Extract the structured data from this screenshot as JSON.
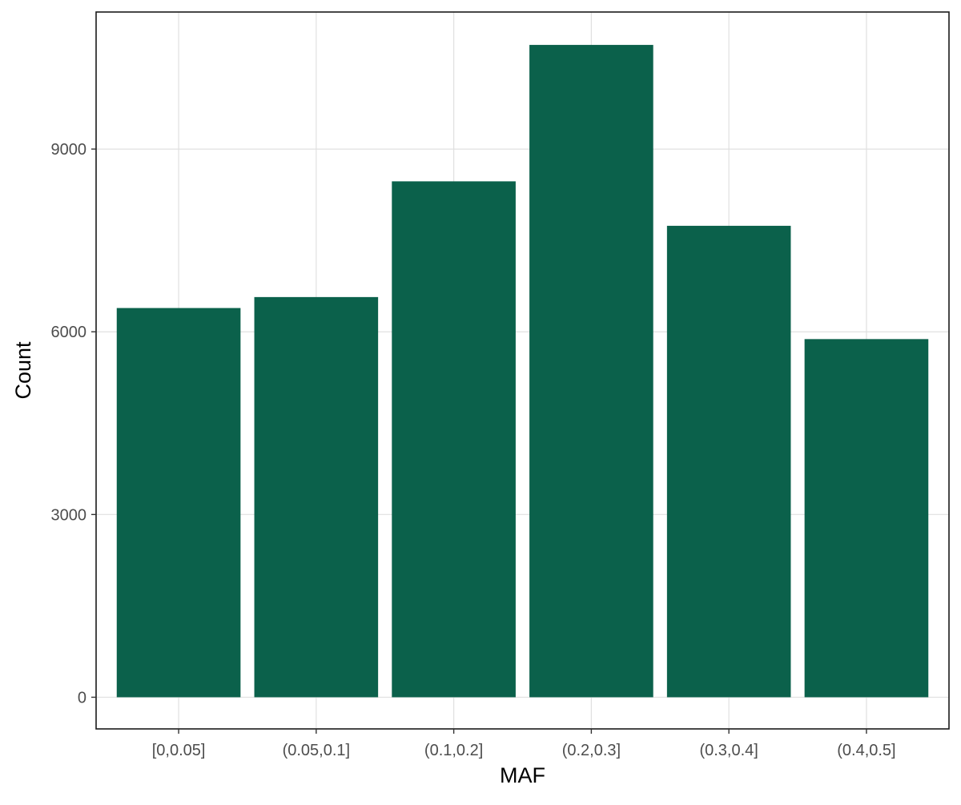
{
  "chart_data": {
    "type": "bar",
    "title": "",
    "xlabel": "MAF",
    "ylabel": "Count",
    "categories": [
      "[0,0.05]",
      "(0.05,0.1]",
      "(0.1,0.2]",
      "(0.2,0.3]",
      "(0.3,0.4]",
      "(0.4,0.5]"
    ],
    "values": [
      6390,
      6570,
      8470,
      10710,
      7740,
      5880
    ],
    "ylim": [
      -520,
      11250
    ],
    "yticks": [
      0,
      3000,
      6000,
      9000
    ],
    "grid": true,
    "legend": "none",
    "bar_color": "#0b614b"
  }
}
